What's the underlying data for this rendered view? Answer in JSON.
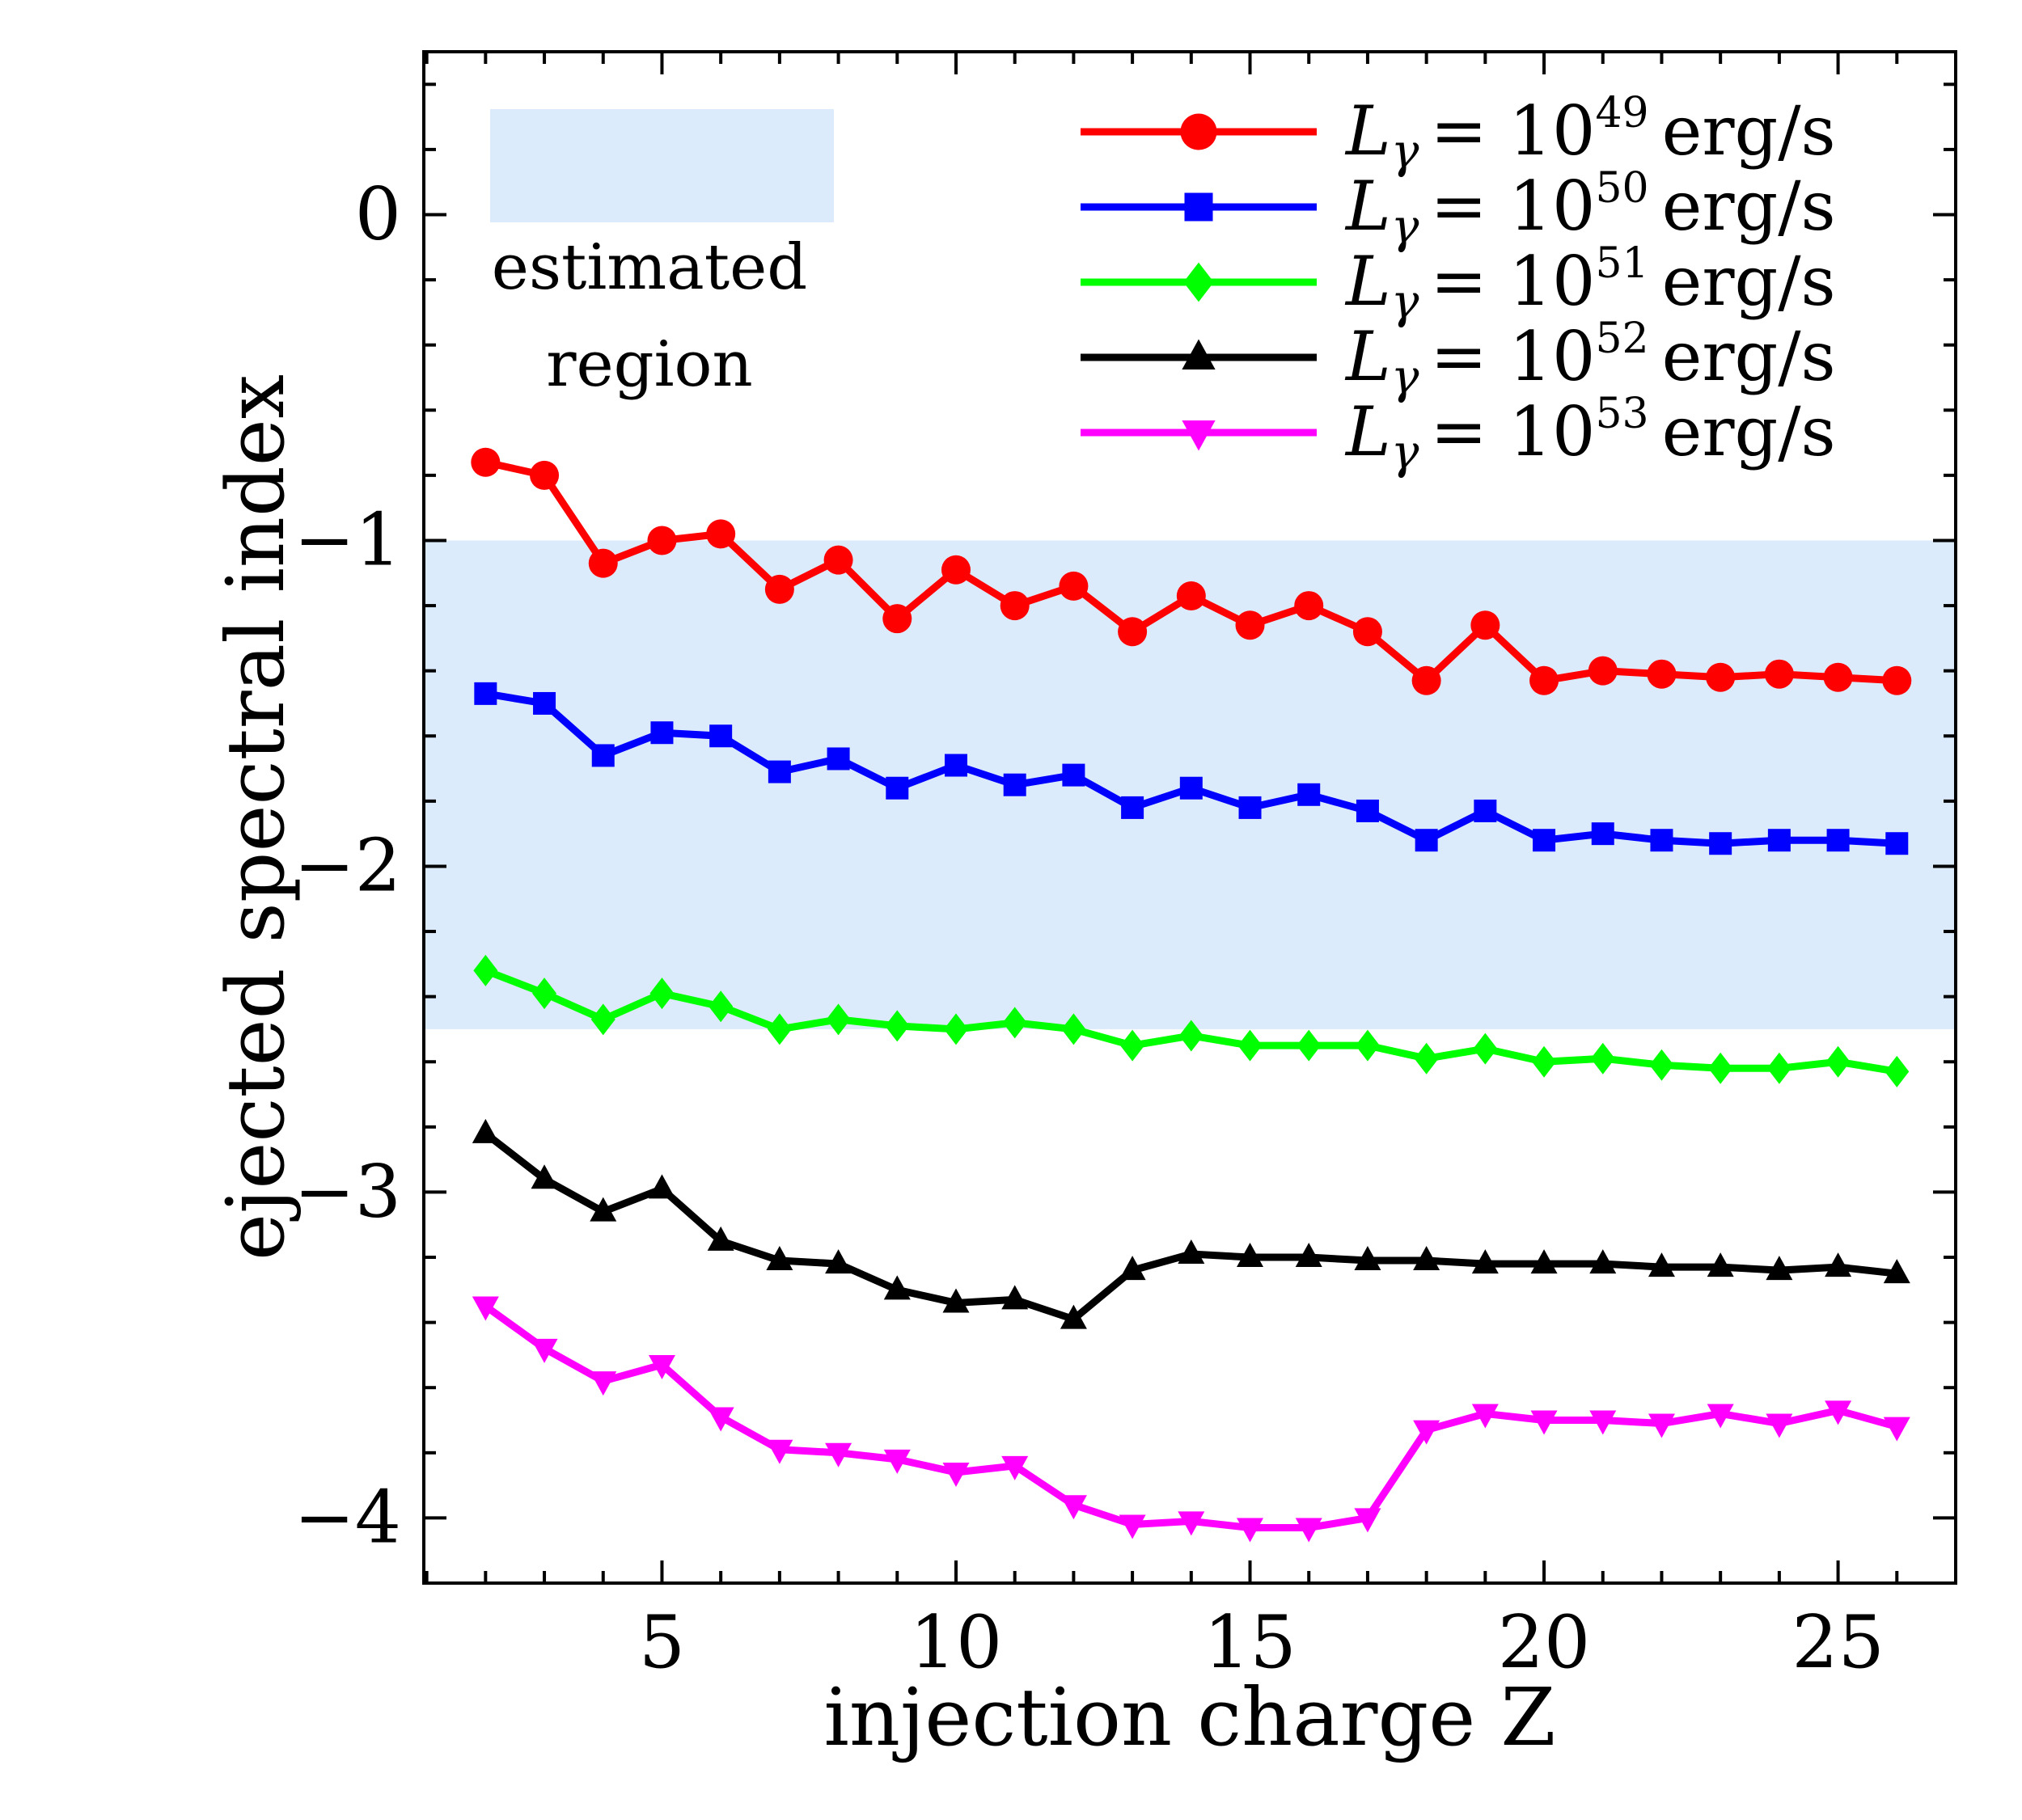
{
  "chart_data": {
    "type": "line",
    "title": "",
    "xlabel": "injection charge Z",
    "ylabel": "ejected spectral index",
    "xlim": [
      0.95,
      27.0
    ],
    "ylim": [
      -4.2,
      0.5
    ],
    "xticks": [
      5,
      10,
      15,
      20,
      25
    ],
    "yticks": [
      0,
      -1,
      -2,
      -3,
      -4
    ],
    "ytick_labels": [
      "0",
      "−1",
      "−2",
      "−3",
      "−4"
    ],
    "shaded_region": {
      "y_range": [
        -2.5,
        -1.0
      ],
      "color": "#dcebfb",
      "label_line1": "estimated",
      "label_line2": "region"
    },
    "x": [
      2,
      3,
      4,
      5,
      6,
      7,
      8,
      9,
      10,
      11,
      12,
      13,
      14,
      15,
      16,
      17,
      18,
      19,
      20,
      21,
      22,
      23,
      24,
      25,
      26
    ],
    "series": [
      {
        "name": "L_γ = 10^49 erg/s",
        "label_prefix": "L",
        "label_sub": "γ",
        "label_eq": "= 10",
        "label_exp": "49",
        "label_unit": "erg/s",
        "color": "#ff0000",
        "marker": "circle",
        "values": [
          -0.76,
          -0.8,
          -1.07,
          -1.0,
          -0.98,
          -1.15,
          -1.06,
          -1.24,
          -1.09,
          -1.2,
          -1.14,
          -1.28,
          -1.17,
          -1.26,
          -1.2,
          -1.28,
          -1.43,
          -1.26,
          -1.43,
          -1.4,
          -1.41,
          -1.42,
          -1.41,
          -1.42,
          -1.43
        ]
      },
      {
        "name": "L_γ = 10^50 erg/s",
        "label_prefix": "L",
        "label_sub": "γ",
        "label_eq": "= 10",
        "label_exp": "50",
        "label_unit": "erg/s",
        "color": "#0000ff",
        "marker": "square",
        "values": [
          -1.47,
          -1.5,
          -1.66,
          -1.59,
          -1.6,
          -1.71,
          -1.67,
          -1.76,
          -1.69,
          -1.75,
          -1.72,
          -1.82,
          -1.76,
          -1.82,
          -1.78,
          -1.83,
          -1.92,
          -1.83,
          -1.92,
          -1.9,
          -1.92,
          -1.93,
          -1.92,
          -1.92,
          -1.93
        ]
      },
      {
        "name": "L_γ = 10^51 erg/s",
        "label_prefix": "L",
        "label_sub": "γ",
        "label_eq": "= 10",
        "label_exp": "51",
        "label_unit": "erg/s",
        "color": "#00ff00",
        "marker": "diamond",
        "values": [
          -2.32,
          -2.39,
          -2.47,
          -2.39,
          -2.43,
          -2.5,
          -2.47,
          -2.49,
          -2.5,
          -2.48,
          -2.5,
          -2.55,
          -2.52,
          -2.55,
          -2.55,
          -2.55,
          -2.59,
          -2.56,
          -2.6,
          -2.59,
          -2.61,
          -2.62,
          -2.62,
          -2.6,
          -2.63
        ]
      },
      {
        "name": "L_γ = 10^52 erg/s",
        "label_prefix": "L",
        "label_sub": "γ",
        "label_eq": "= 10",
        "label_exp": "52",
        "label_unit": "erg/s",
        "color": "#000000",
        "marker": "triangle-up",
        "values": [
          -2.82,
          -2.96,
          -3.06,
          -2.99,
          -3.15,
          -3.21,
          -3.22,
          -3.3,
          -3.34,
          -3.33,
          -3.39,
          -3.24,
          -3.19,
          -3.2,
          -3.2,
          -3.21,
          -3.21,
          -3.22,
          -3.22,
          -3.22,
          -3.23,
          -3.23,
          -3.24,
          -3.23,
          -3.25
        ]
      },
      {
        "name": "L_γ = 10^53 erg/s",
        "label_prefix": "L",
        "label_sub": "γ",
        "label_eq": "= 10",
        "label_exp": "53",
        "label_unit": "erg/s",
        "color": "#ff00ff",
        "marker": "triangle-down",
        "values": [
          -3.35,
          -3.48,
          -3.58,
          -3.53,
          -3.69,
          -3.79,
          -3.8,
          -3.82,
          -3.86,
          -3.84,
          -3.96,
          -4.02,
          -4.01,
          -4.03,
          -4.03,
          -4.0,
          -3.73,
          -3.68,
          -3.7,
          -3.7,
          -3.71,
          -3.68,
          -3.71,
          -3.67,
          -3.72
        ]
      }
    ]
  }
}
